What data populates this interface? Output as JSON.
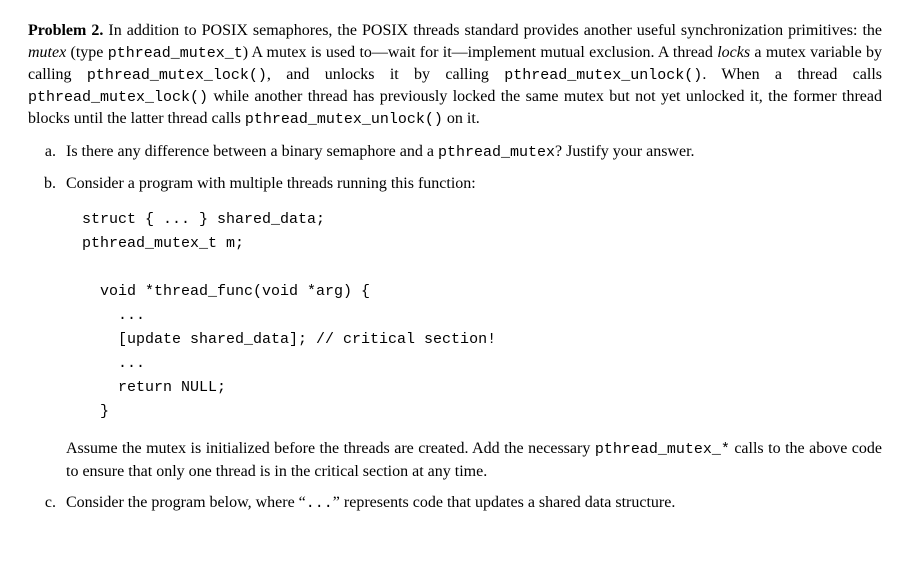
{
  "problem": {
    "label": "Problem 2.",
    "intro_1": "In addition to POSIX semaphores, the POSIX threads standard provides another useful synchronization primitives: the ",
    "intro_mutex_italic": "mutex",
    "intro_2": " (type ",
    "intro_type": "pthread_mutex_t",
    "intro_3": ") A mutex is used to—wait for it—implement mutual exclusion. A thread ",
    "intro_locks_italic": "locks",
    "intro_4": " a mutex variable by calling ",
    "fn_lock": "pthread_mutex_lock()",
    "intro_5": ", and unlocks it by calling ",
    "fn_unlock": "pthread_mutex_unlock()",
    "intro_6": ". When a thread calls ",
    "fn_lock2": "pthread_mutex_lock()",
    "intro_7": " while another thread has previously locked the same mutex but not yet unlocked it, the former thread blocks until the latter thread calls ",
    "fn_unlock2": "pthread_mutex_unlock()",
    "intro_8": " on it."
  },
  "item_a": {
    "text_1": "Is there any difference between a binary semaphore and a ",
    "mono": "pthread_mutex",
    "text_2": "? Justify your answer."
  },
  "item_b": {
    "text": "Consider a program with multiple threads running this function:",
    "code_line1": "struct { ... } shared_data;",
    "code_line2": "pthread_mutex_t m;",
    "code_line3": "  void *thread_func(void *arg) {",
    "code_line4": "    ...",
    "code_line5": "    [update shared_data]; // critical section!",
    "code_line6": "    ...",
    "code_line7": "    return NULL;",
    "code_line8": "  }",
    "after_1": "Assume the mutex is initialized before the threads are created. Add the necessary ",
    "after_mono": "pthread_mutex_*",
    "after_2": " calls to the above code to ensure that only one thread is in the critical section at any time."
  },
  "item_c": {
    "text_1": "Consider the program below, where “",
    "mono": "...",
    "text_2": "” represents code that updates a shared data structure."
  }
}
